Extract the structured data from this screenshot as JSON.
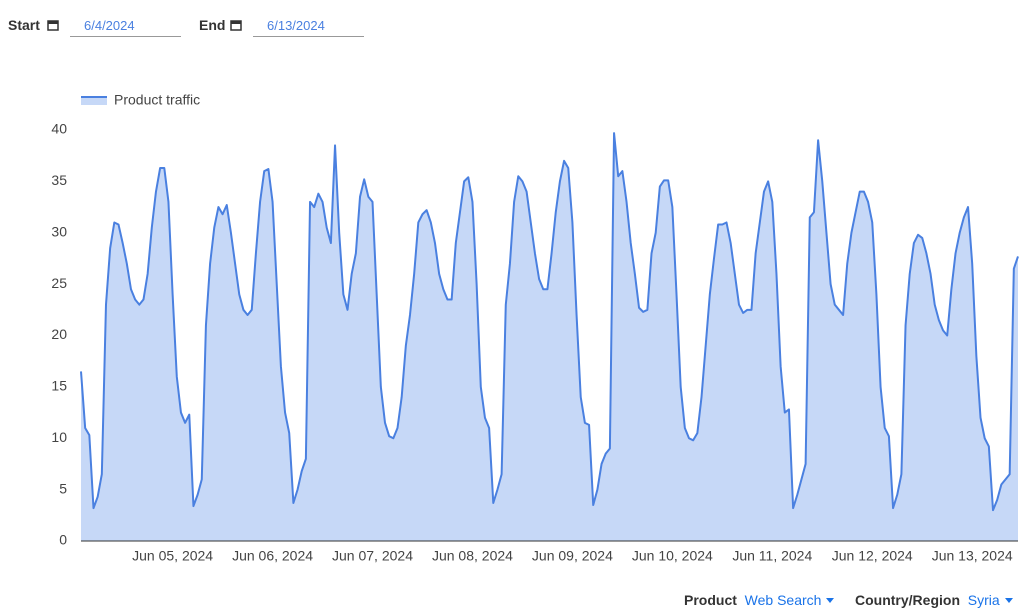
{
  "controls": {
    "start_label": "Start",
    "start_value": "6/4/2024",
    "end_label": "End",
    "end_value": "6/13/2024"
  },
  "chart_data": {
    "type": "area",
    "series": [
      {
        "name": "Product traffic",
        "color": "#4a80e0",
        "fill": "#c6d8f7",
        "values": [
          16.5,
          11,
          10.3,
          3.2,
          4.3,
          6.5,
          23,
          28.5,
          31,
          30.8,
          29,
          27,
          24.5,
          23.5,
          23,
          23.5,
          26,
          30.5,
          34,
          36.3,
          36.3,
          33,
          24,
          16,
          12.5,
          11.5,
          12.3,
          3.4,
          4.5,
          6,
          21,
          27,
          30.5,
          32.5,
          31.8,
          32.7,
          30,
          27,
          24,
          22.5,
          22,
          22.5,
          28,
          33,
          36,
          36.2,
          33,
          25,
          17,
          12.5,
          10.5,
          3.7,
          5,
          6.8,
          8,
          33,
          32.5,
          33.8,
          33,
          30.5,
          29,
          38.5,
          30,
          24,
          22.5,
          26,
          28,
          33.5,
          35.2,
          33.5,
          33,
          24,
          15,
          11.5,
          10.2,
          10,
          11,
          14,
          19,
          22,
          26,
          31,
          31.8,
          32.2,
          31,
          29,
          26,
          24.5,
          23.5,
          23.5,
          29,
          32,
          35,
          35.4,
          33,
          25,
          15,
          12,
          11,
          3.7,
          5,
          6.5,
          23,
          27,
          33,
          35.5,
          35,
          34,
          31,
          28,
          25.5,
          24.5,
          24.5,
          28,
          32,
          35,
          37,
          36.3,
          31,
          22,
          14,
          11.5,
          11.3,
          3.5,
          5,
          7.5,
          8.5,
          9,
          39.7,
          35.5,
          36,
          33,
          29,
          26,
          22.7,
          22.3,
          22.5,
          28,
          30,
          34.5,
          35.1,
          35.1,
          32.5,
          24,
          15,
          11,
          10,
          9.8,
          10.5,
          14,
          19,
          24,
          27.5,
          30.8,
          30.8,
          31,
          29,
          26,
          23,
          22.2,
          22.5,
          22.5,
          28,
          31,
          34,
          35,
          33,
          26,
          17,
          12.5,
          12.8,
          3.2,
          4.5,
          6,
          7.5,
          31.5,
          32,
          39,
          35,
          30,
          25,
          23,
          22.5,
          22,
          27,
          30,
          32,
          34,
          34,
          33,
          31,
          24,
          15,
          11,
          10.2,
          3.2,
          4.5,
          6.5,
          21,
          26,
          29,
          29.8,
          29.5,
          28,
          26,
          23,
          21.5,
          20.5,
          20,
          24.5,
          28,
          30,
          31.5,
          32.5,
          27,
          18,
          12,
          10,
          9.2,
          3,
          4,
          5.5,
          6,
          6.5,
          26.5,
          27.7
        ]
      }
    ],
    "xlim": [
      0,
      225
    ],
    "xticks": [
      {
        "value": 22,
        "label": "Jun 05, 2024"
      },
      {
        "value": 46,
        "label": "Jun 06, 2024"
      },
      {
        "value": 70,
        "label": "Jun 07, 2024"
      },
      {
        "value": 94,
        "label": "Jun 08, 2024"
      },
      {
        "value": 118,
        "label": "Jun 09, 2024"
      },
      {
        "value": 142,
        "label": "Jun 10, 2024"
      },
      {
        "value": 166,
        "label": "Jun 11, 2024"
      },
      {
        "value": 190,
        "label": "Jun 12, 2024"
      },
      {
        "value": 214,
        "label": "Jun 13, 2024"
      }
    ],
    "ylim": [
      0,
      40
    ],
    "yticks": [
      0,
      5,
      10,
      15,
      20,
      25,
      30,
      35,
      40
    ],
    "grid": false,
    "legend": "top-left"
  },
  "filters": {
    "product_label": "Product",
    "product_value": "Web Search",
    "country_label": "Country/Region",
    "country_value": "Syria"
  }
}
